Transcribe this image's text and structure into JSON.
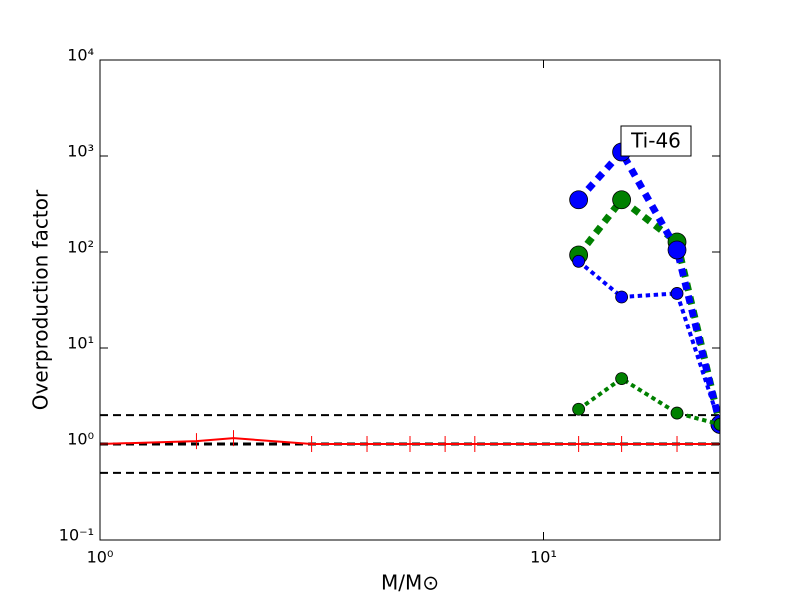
{
  "chart_data": {
    "type": "line",
    "xlabel": "M/M⊙",
    "ylabel": "Overproduction factor",
    "annotation": "Ti-46",
    "xscale": "log",
    "yscale": "log",
    "xlim": [
      1,
      25
    ],
    "ylim": [
      0.1,
      10000
    ],
    "xticks": [
      {
        "value": 1,
        "label": "10⁰"
      },
      {
        "value": 10,
        "label": "10¹"
      }
    ],
    "yticks": [
      {
        "value": 0.1,
        "label": "10⁻¹"
      },
      {
        "value": 1,
        "label": "10⁰"
      },
      {
        "value": 10,
        "label": "10¹"
      },
      {
        "value": 100,
        "label": "10²"
      },
      {
        "value": 1000,
        "label": "10³"
      },
      {
        "value": 10000,
        "label": "10⁴"
      }
    ],
    "hlines": [
      {
        "y": 2,
        "color": "#000000",
        "linewidth": 2
      },
      {
        "y": 1,
        "color": "#000000",
        "linewidth": 3
      },
      {
        "y": 0.5,
        "color": "#000000",
        "linewidth": 2
      }
    ],
    "series": [
      {
        "color": "#ff0000",
        "marker": "plus",
        "linestyle": "solid",
        "linewidth": 2,
        "x": [
          1,
          1.65,
          2,
          3,
          4,
          5,
          6,
          7,
          12,
          15,
          20,
          25
        ],
        "values": [
          1,
          1.07,
          1.15,
          1.0,
          1,
          1,
          1,
          1,
          1,
          1,
          1,
          1
        ]
      },
      {
        "color": "#008000",
        "marker": "circle",
        "markersize": 9,
        "linestyle": "dotted",
        "linewidth": 7,
        "x": [
          12,
          15,
          20,
          25
        ],
        "values": [
          93,
          350,
          127,
          1.6
        ]
      },
      {
        "color": "#0000ff",
        "marker": "circle",
        "markersize": 9,
        "linestyle": "dotted",
        "linewidth": 7,
        "x": [
          12,
          15,
          20,
          25
        ],
        "values": [
          350,
          1100,
          105,
          1.6
        ]
      },
      {
        "color": "#0000ff",
        "marker": "circle",
        "markersize": 6,
        "linestyle": "dotted",
        "linewidth": 4,
        "x": [
          12,
          15,
          20,
          25
        ],
        "values": [
          80,
          34,
          37,
          1.6
        ]
      },
      {
        "color": "#008000",
        "marker": "circle",
        "markersize": 6,
        "linestyle": "dotted",
        "linewidth": 4,
        "x": [
          12,
          15,
          20,
          25
        ],
        "values": [
          2.3,
          4.8,
          2.1,
          1.6
        ]
      }
    ]
  }
}
